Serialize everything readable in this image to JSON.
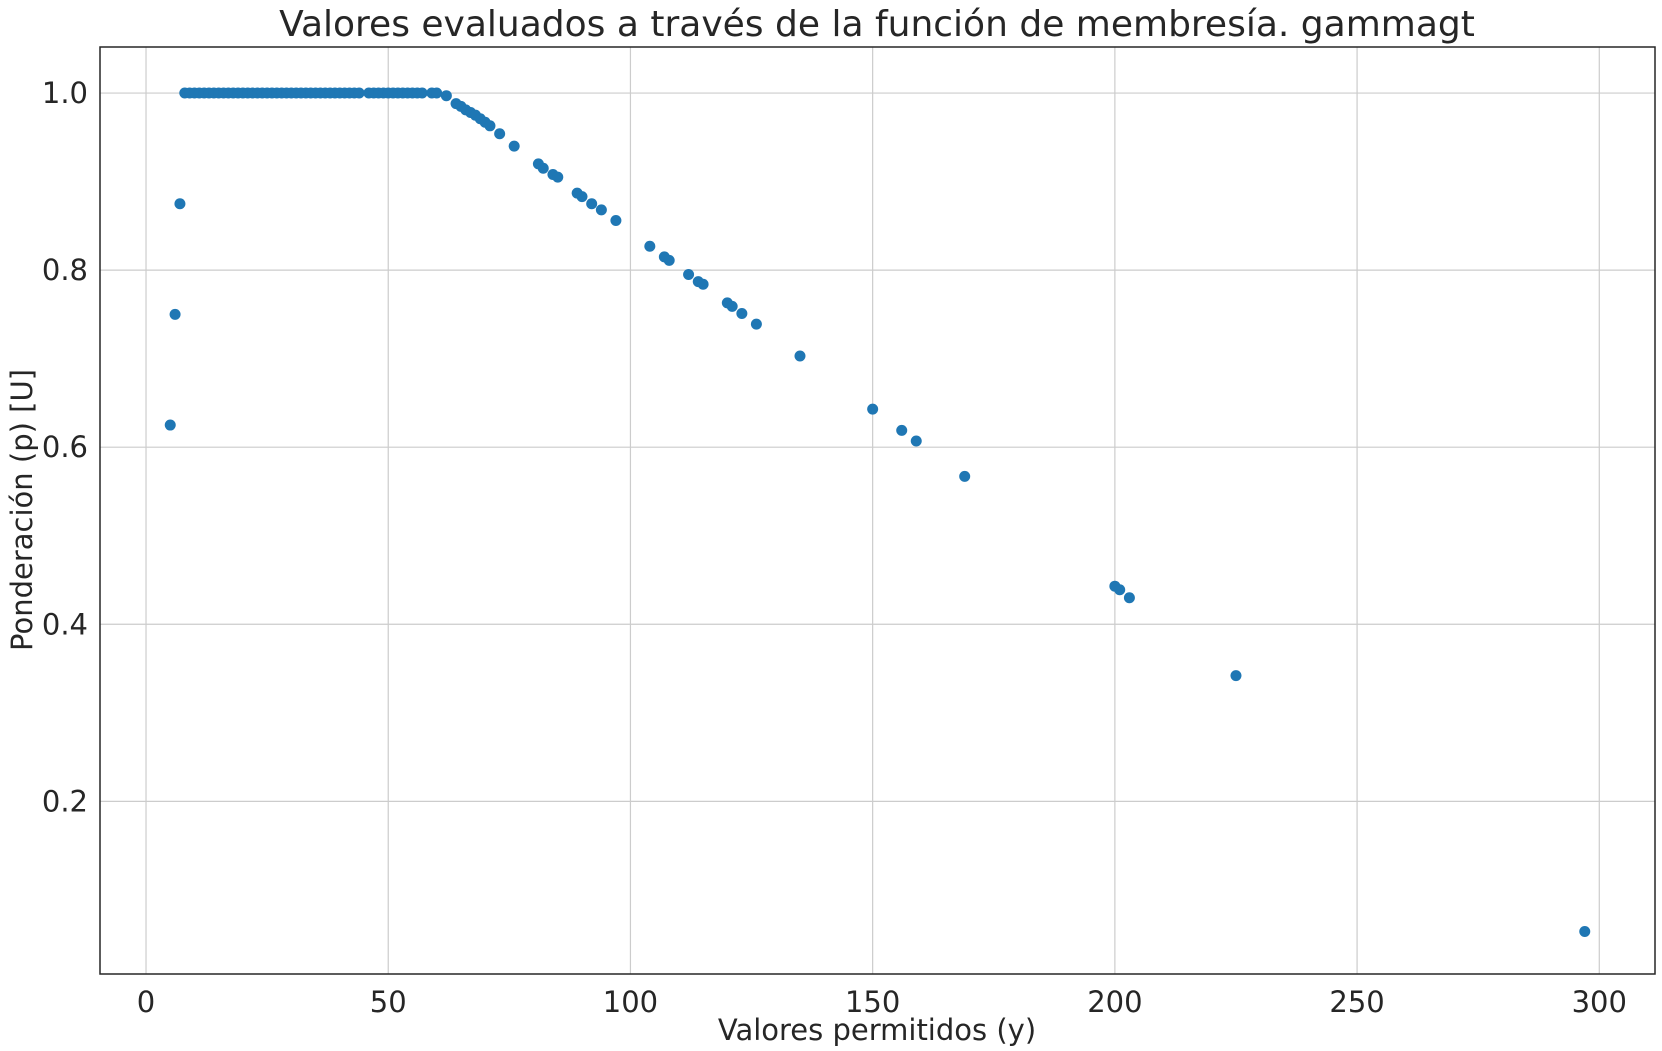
{
  "chart_data": {
    "type": "scatter",
    "title": "Valores evaluados a través de la función de membresía. gammagt",
    "xlabel": "Valores permitidos (y)",
    "ylabel": "Ponderación (p) [U]",
    "xlim": [
      -9.5,
      311.5
    ],
    "ylim": [
      0.005,
      1.052
    ],
    "xticks": [
      0,
      50,
      100,
      150,
      200,
      250,
      300
    ],
    "yticks": [
      0.2,
      0.4,
      0.6,
      0.8,
      1.0
    ],
    "xtick_labels": [
      "0",
      "50",
      "100",
      "150",
      "200",
      "250",
      "300"
    ],
    "ytick_labels": [
      "0.2",
      "0.4",
      "0.6",
      "0.8",
      "1.0"
    ],
    "grid": true,
    "marker_color": "#1f77b4",
    "series": [
      {
        "x": [
          5,
          6,
          7,
          8,
          9,
          10,
          11,
          12,
          13,
          14,
          15,
          16,
          17,
          18,
          19,
          20,
          21,
          22,
          23,
          24,
          25,
          26,
          27,
          28,
          29,
          30,
          31,
          32,
          33,
          34,
          35,
          36,
          37,
          38,
          39,
          40,
          41,
          42,
          43,
          44,
          46,
          47,
          48,
          49,
          50,
          51,
          52,
          53,
          54,
          55,
          56,
          57,
          59,
          60,
          62,
          64,
          65,
          66,
          67,
          68,
          69,
          70,
          71,
          73,
          76,
          81,
          82,
          84,
          85,
          89,
          90,
          92,
          94,
          97,
          104,
          107,
          108,
          112,
          114,
          115,
          120,
          121,
          123,
          126,
          135,
          150,
          156,
          159,
          169,
          200,
          201,
          203,
          225,
          297
        ],
        "y": [
          0.625,
          0.75,
          0.875,
          1.0,
          1.0,
          1.0,
          1.0,
          1.0,
          1.0,
          1.0,
          1.0,
          1.0,
          1.0,
          1.0,
          1.0,
          1.0,
          1.0,
          1.0,
          1.0,
          1.0,
          1.0,
          1.0,
          1.0,
          1.0,
          1.0,
          1.0,
          1.0,
          1.0,
          1.0,
          1.0,
          1.0,
          1.0,
          1.0,
          1.0,
          1.0,
          1.0,
          1.0,
          1.0,
          1.0,
          1.0,
          1.0,
          1.0,
          1.0,
          1.0,
          1.0,
          1.0,
          1.0,
          1.0,
          1.0,
          1.0,
          1.0,
          1.0,
          1.0,
          1.0,
          0.997,
          0.988,
          0.985,
          0.981,
          0.978,
          0.975,
          0.971,
          0.967,
          0.963,
          0.954,
          0.94,
          0.92,
          0.915,
          0.908,
          0.905,
          0.887,
          0.883,
          0.875,
          0.868,
          0.856,
          0.827,
          0.815,
          0.811,
          0.795,
          0.787,
          0.784,
          0.763,
          0.759,
          0.751,
          0.739,
          0.703,
          0.643,
          0.619,
          0.607,
          0.567,
          0.443,
          0.439,
          0.43,
          0.342,
          0.053
        ]
      }
    ]
  }
}
